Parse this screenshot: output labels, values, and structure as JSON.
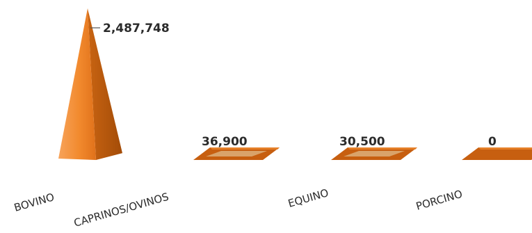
{
  "chart_data": {
    "type": "bar",
    "style": "3d-pyramid",
    "categories": [
      "BOVINO",
      "CAPRINOS/OVINOS",
      "EQUINO",
      "PORCINO"
    ],
    "values": [
      2487748,
      36900,
      30500,
      0
    ],
    "value_labels": [
      "2,487,748",
      "36,900",
      "30,500",
      "0"
    ],
    "title": "",
    "xlabel": "",
    "ylabel": "",
    "grid": false,
    "legend": "none",
    "colors": {
      "front": "#f28a2e",
      "side": "#c75f10",
      "base_top": "#e57f28",
      "base_inner": "#d9a36a"
    }
  }
}
